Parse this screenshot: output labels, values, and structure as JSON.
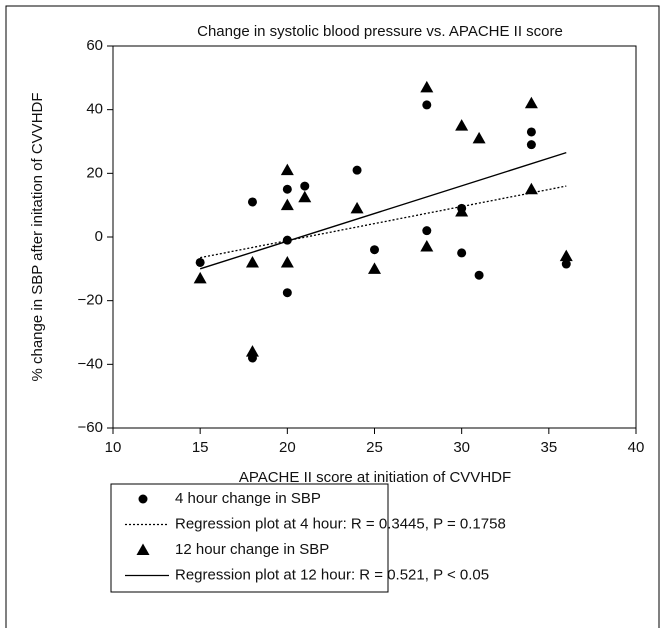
{
  "chart_data": {
    "type": "scatter",
    "title": "Change in systolic blood pressure vs. APACHE II score",
    "x_label": "APACHE II score at initiation of CVVHDF",
    "y_label": "% change in SBP after initation of CVVHDF",
    "xlim": [
      10,
      40
    ],
    "xticks": [
      10,
      15,
      20,
      25,
      30,
      35,
      40
    ],
    "ylim": [
      -60,
      60
    ],
    "yticks": [
      {
        "value": -60,
        "label": "−60"
      },
      {
        "value": -40,
        "label": "−40"
      },
      {
        "value": -20,
        "label": "−20"
      },
      0,
      20,
      40,
      60
    ],
    "series": [
      {
        "name": "4 hour change in SBP",
        "color": "#000000",
        "marker": "circle",
        "x": [
          15,
          18,
          18,
          20,
          20,
          20,
          21,
          24,
          25,
          28,
          28,
          30,
          30,
          31,
          34,
          34,
          36
        ],
        "values": [
          -8,
          11,
          -38,
          15,
          -1,
          -17.5,
          16,
          21,
          -4,
          41.5,
          2,
          9,
          -5,
          -12,
          33,
          29,
          -8.5
        ]
      },
      {
        "name": "Regression plot at 4 hour: R = 0.3445, P = 0.1758",
        "color": "#000000",
        "line_style": "dotted",
        "x": [
          15,
          36
        ],
        "values": [
          -6.5,
          16
        ]
      },
      {
        "name": "12 hour change in SBP",
        "color": "#000000",
        "marker": "triangle",
        "x": [
          15,
          18,
          18,
          20,
          20,
          20,
          21,
          24,
          25,
          28,
          28,
          30,
          30,
          31,
          34,
          34,
          36
        ],
        "values": [
          -13,
          -8,
          -36,
          21,
          10,
          -8,
          12.5,
          9,
          -10,
          47,
          -3,
          35,
          8,
          31,
          42,
          15,
          -6
        ]
      },
      {
        "name": "Regression plot at 12 hour: R = 0.521, P < 0.05",
        "color": "#000000",
        "line_style": "solid",
        "x": [
          15,
          36
        ],
        "values": [
          -10,
          26.5
        ]
      }
    ]
  }
}
